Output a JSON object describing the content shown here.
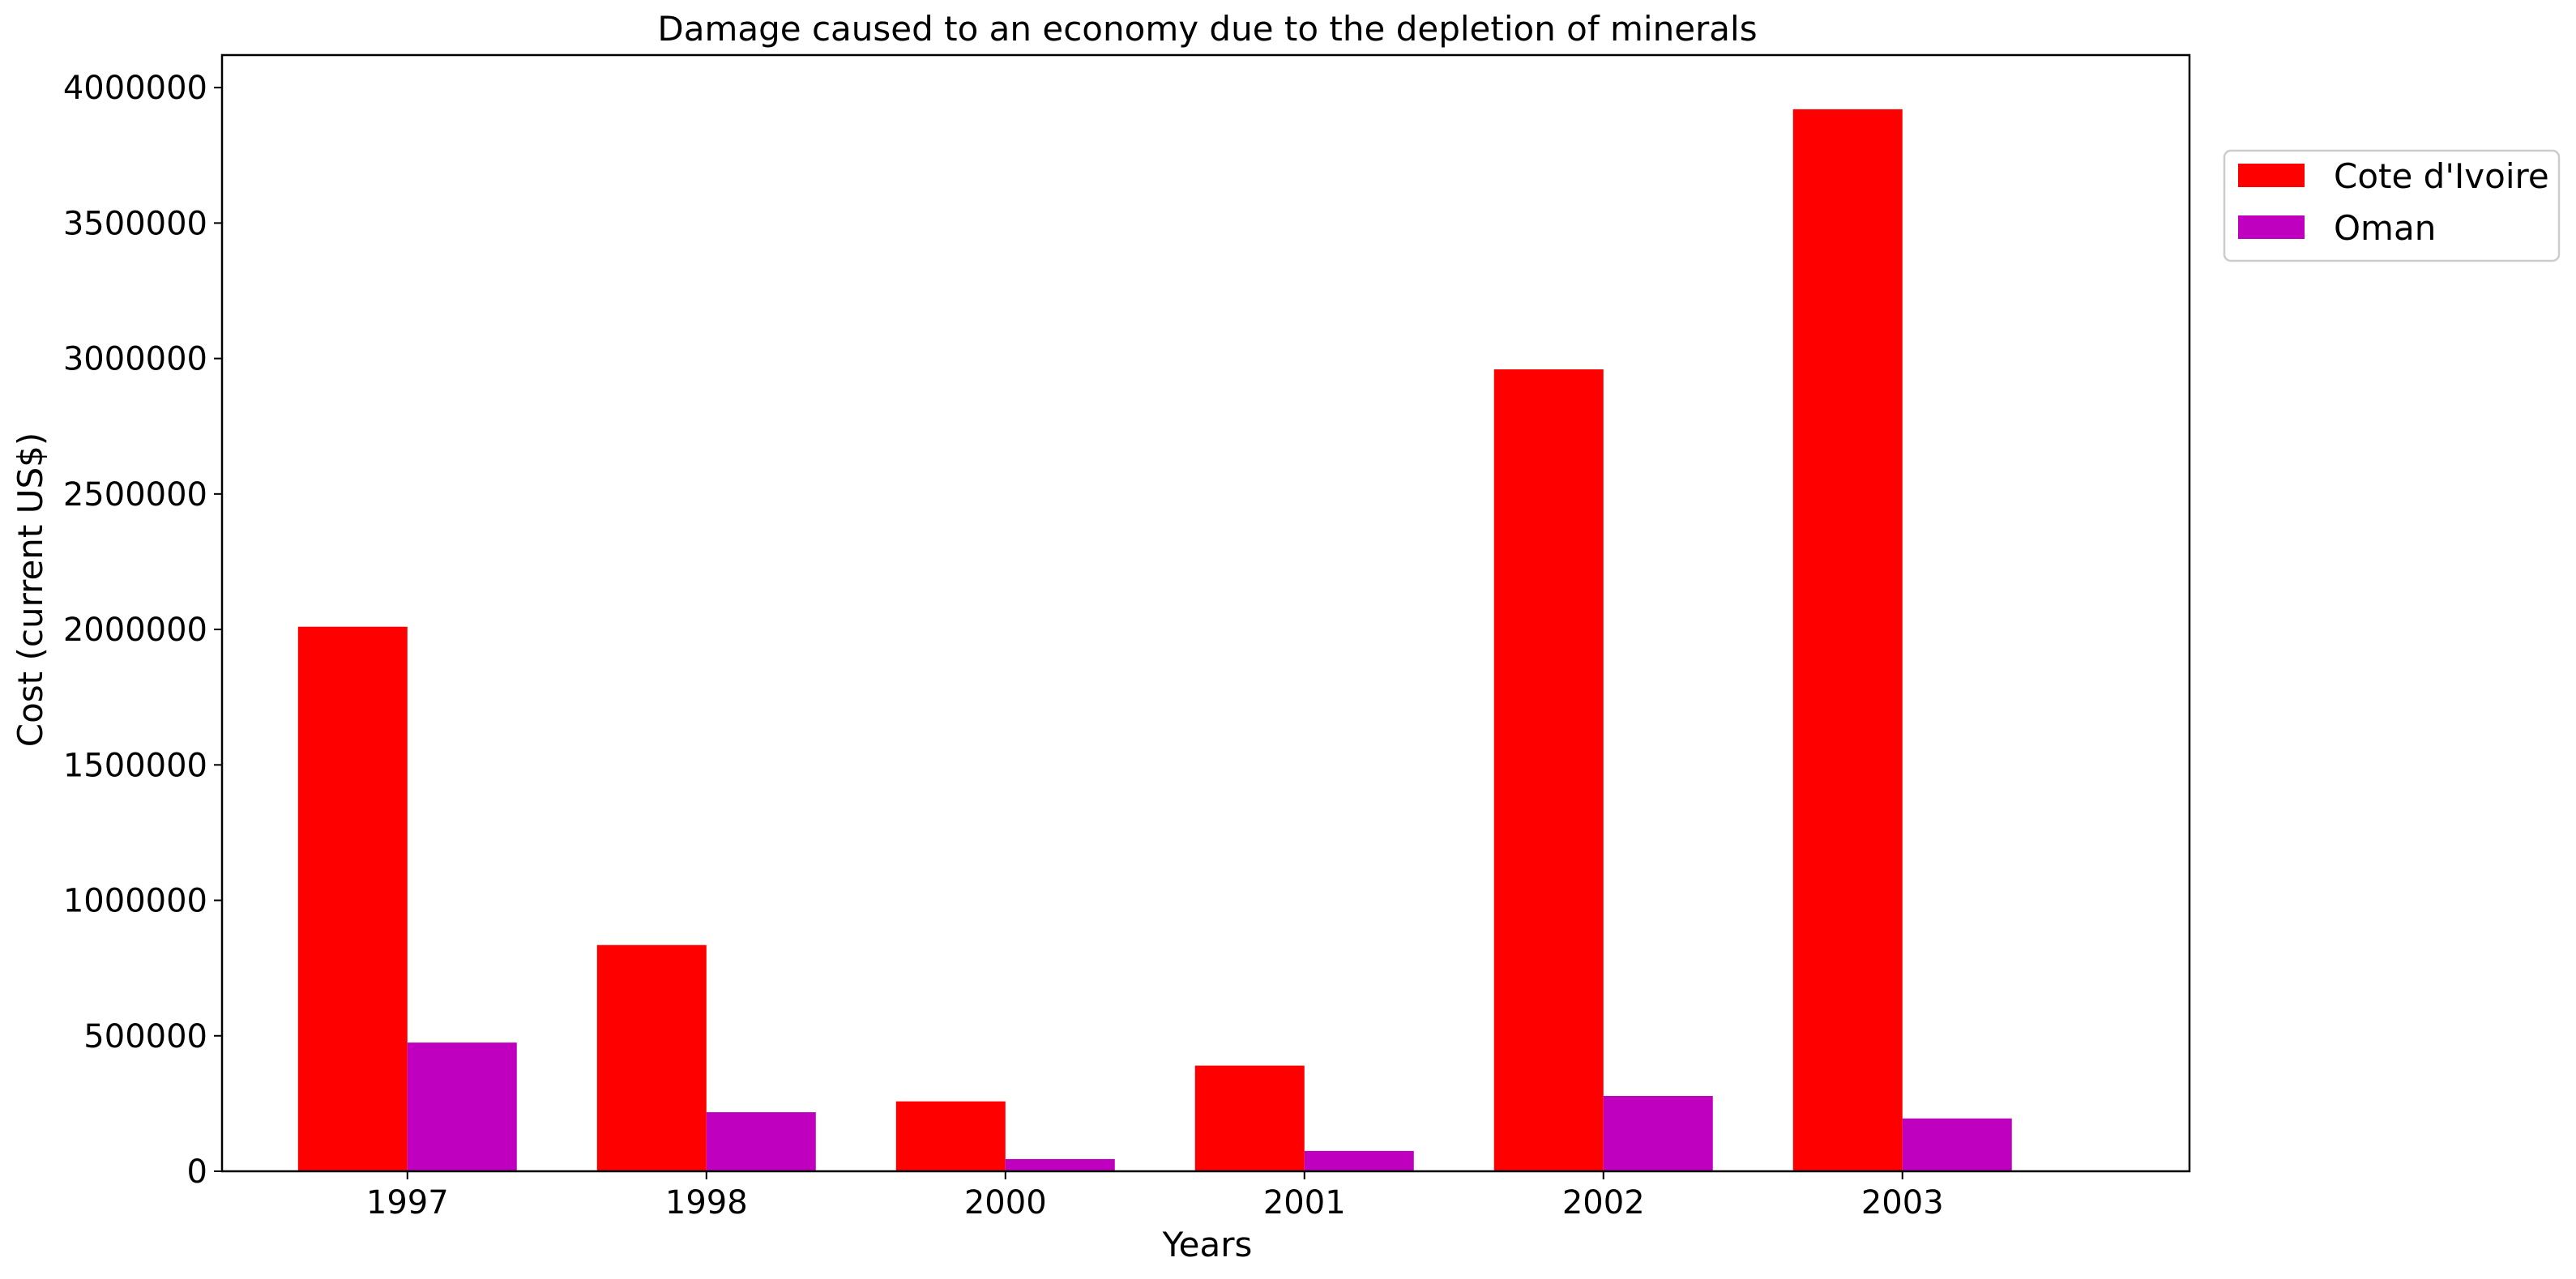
{
  "chart_data": {
    "type": "bar",
    "title": "Damage caused to an economy due to the depletion of minerals",
    "xlabel": "Years",
    "ylabel": "Cost (current US$)",
    "categories": [
      "1997",
      "1998",
      "2000",
      "2001",
      "2002",
      "2003"
    ],
    "series": [
      {
        "name": "Cote d'Ivoire",
        "color": "#ff0000",
        "values": [
          2010000,
          835000,
          258000,
          390000,
          2960000,
          3920000
        ]
      },
      {
        "name": "Oman",
        "color": "#bf00bf",
        "values": [
          475000,
          218000,
          45000,
          75000,
          278000,
          195000
        ]
      }
    ],
    "ylim": [
      0,
      4120000
    ],
    "yticks": [
      0,
      500000,
      1000000,
      1500000,
      2000000,
      2500000,
      3000000,
      3500000,
      4000000
    ],
    "ytick_labels": [
      "0",
      "500000",
      "1000000",
      "1500000",
      "2000000",
      "2500000",
      "3000000",
      "3500000",
      "4000000"
    ],
    "grid": false,
    "legend_position": "outside-top-right"
  }
}
